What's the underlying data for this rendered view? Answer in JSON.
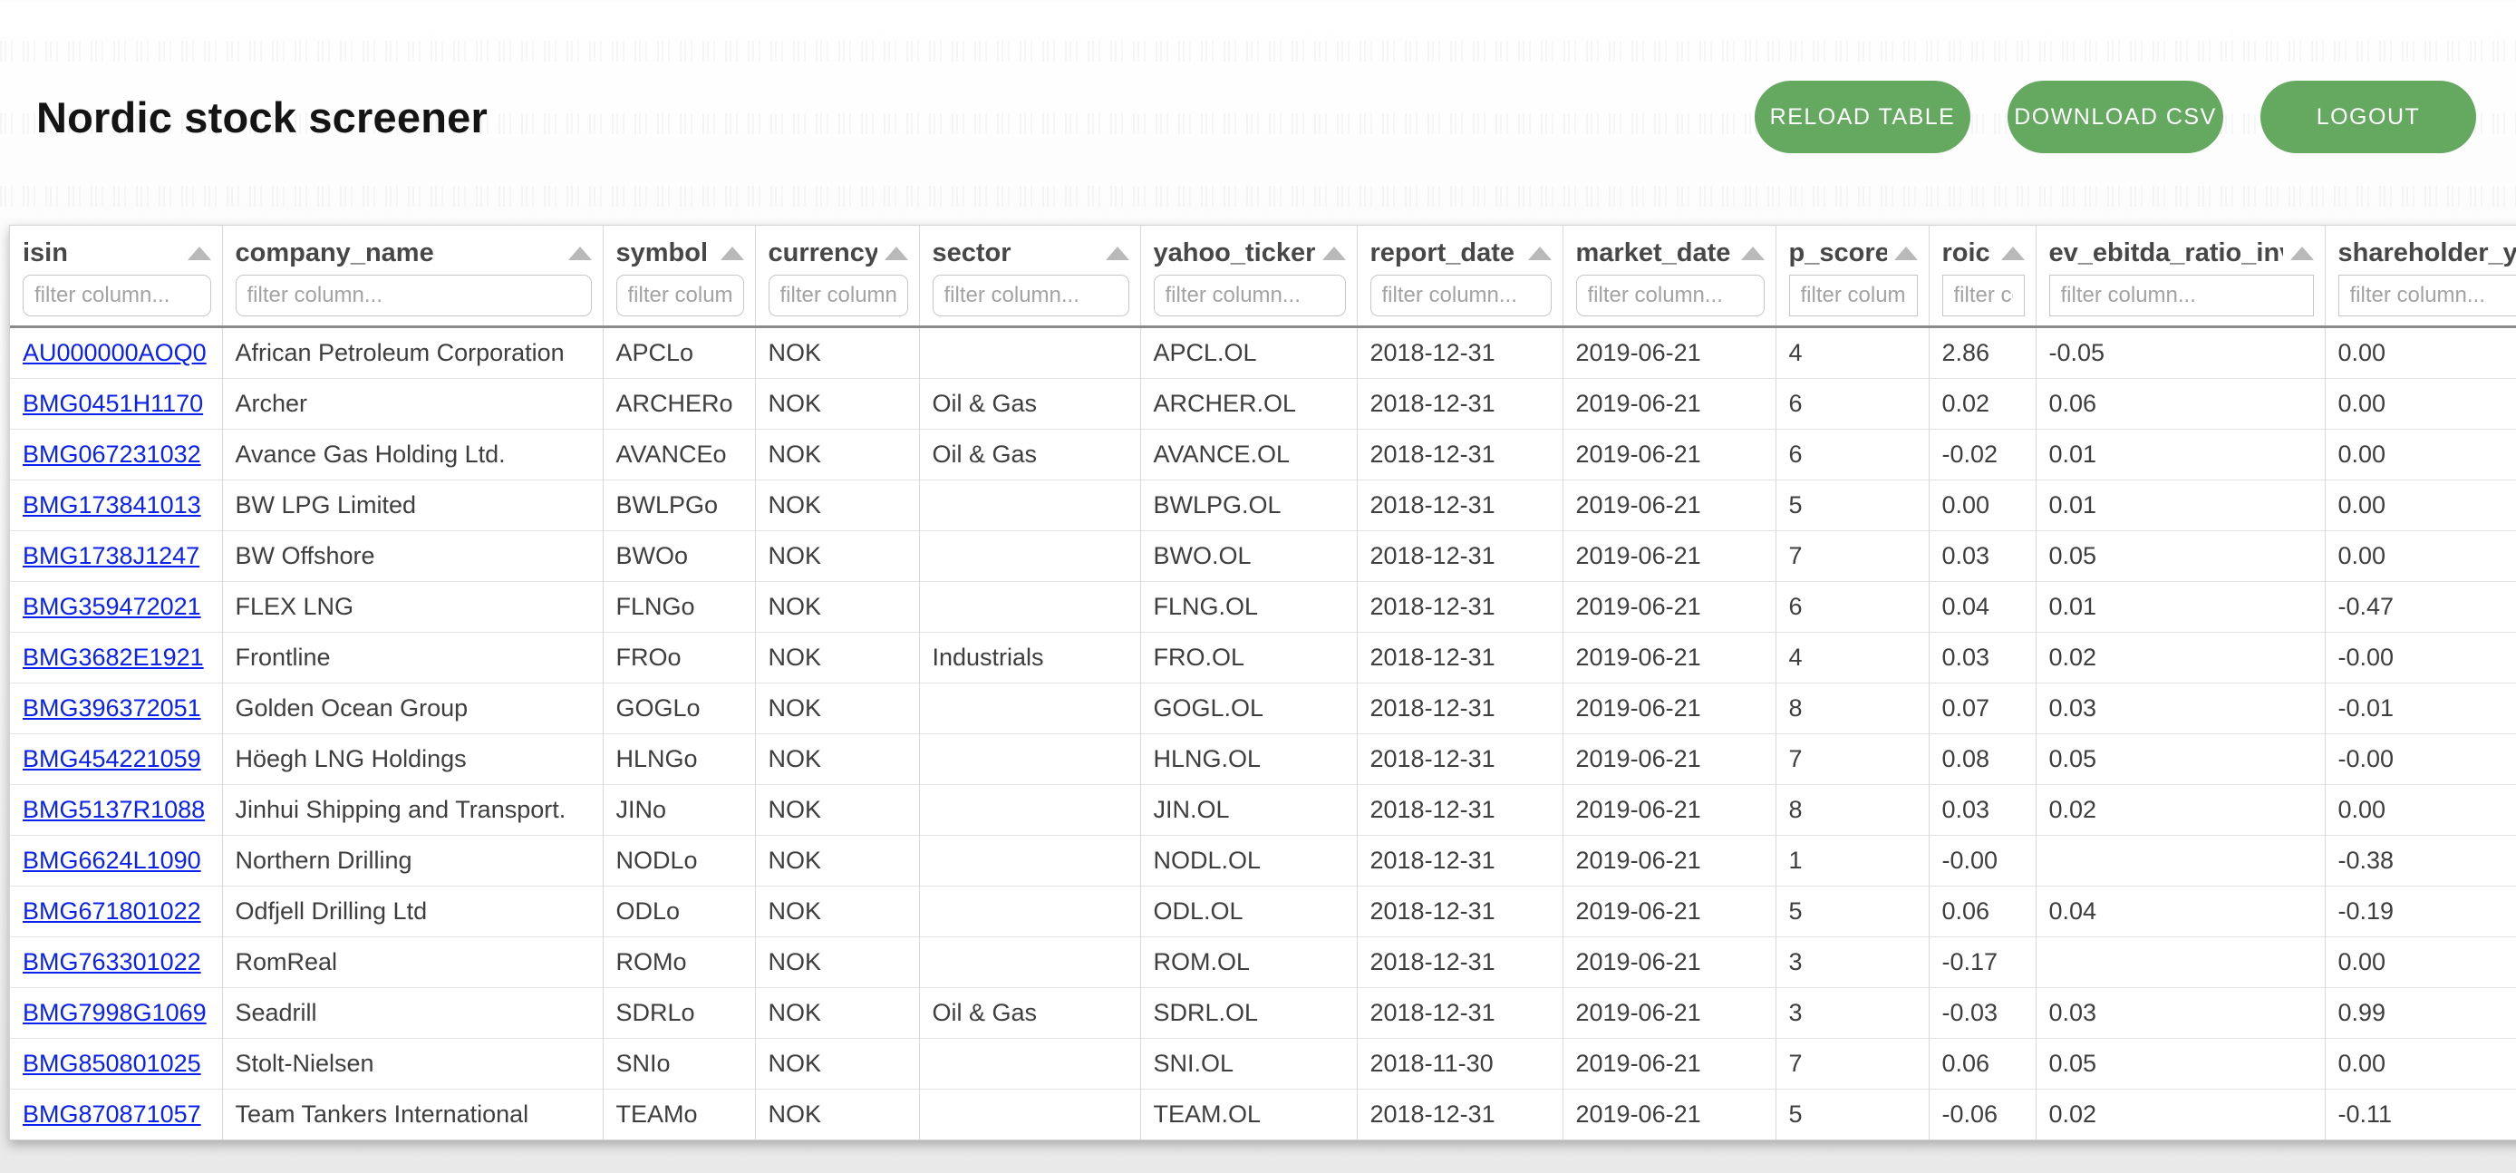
{
  "header": {
    "title": "Nordic stock screener",
    "buttons": [
      {
        "label": "RELOAD TABLE"
      },
      {
        "label": "DOWNLOAD CSV"
      },
      {
        "label": "LOGOUT"
      }
    ]
  },
  "colors": {
    "button_green": "#65a860",
    "link_blue": "#0b21ee",
    "header_underline_gray": "#8b8b8b",
    "sort_arrow_gray": "#b9b9b9"
  },
  "icons": {
    "sort": "up-triangle"
  },
  "table": {
    "filter_placeholder": "filter column...",
    "columns": [
      {
        "name": "isin",
        "numeric": false
      },
      {
        "name": "company_name",
        "numeric": false
      },
      {
        "name": "symbol",
        "numeric": false
      },
      {
        "name": "currency",
        "numeric": false
      },
      {
        "name": "sector",
        "numeric": false
      },
      {
        "name": "yahoo_ticker",
        "numeric": false
      },
      {
        "name": "report_date",
        "numeric": false
      },
      {
        "name": "market_date",
        "numeric": false
      },
      {
        "name": "p_score",
        "numeric": true
      },
      {
        "name": "roic",
        "numeric": true
      },
      {
        "name": "ev_ebitda_ratio_inv",
        "numeric": true
      },
      {
        "name": "shareholder_yield",
        "numeric": true
      }
    ],
    "rows": [
      [
        "AU000000AOQ0",
        "African Petroleum Corporation",
        "APCLo",
        "NOK",
        "",
        "APCL.OL",
        "2018-12-31",
        "2019-06-21",
        "4",
        "2.86",
        "-0.05",
        "0.00"
      ],
      [
        "BMG0451H1170",
        "Archer",
        "ARCHERo",
        "NOK",
        "Oil & Gas",
        "ARCHER.OL",
        "2018-12-31",
        "2019-06-21",
        "6",
        "0.02",
        "0.06",
        "0.00"
      ],
      [
        "BMG067231032",
        "Avance Gas Holding Ltd.",
        "AVANCEo",
        "NOK",
        "Oil & Gas",
        "AVANCE.OL",
        "2018-12-31",
        "2019-06-21",
        "6",
        "-0.02",
        "0.01",
        "0.00"
      ],
      [
        "BMG173841013",
        "BW LPG Limited",
        "BWLPGo",
        "NOK",
        "",
        "BWLPG.OL",
        "2018-12-31",
        "2019-06-21",
        "5",
        "0.00",
        "0.01",
        "0.00"
      ],
      [
        "BMG1738J1247",
        "BW Offshore",
        "BWOo",
        "NOK",
        "",
        "BWO.OL",
        "2018-12-31",
        "2019-06-21",
        "7",
        "0.03",
        "0.05",
        "0.00"
      ],
      [
        "BMG359472021",
        "FLEX LNG",
        "FLNGo",
        "NOK",
        "",
        "FLNG.OL",
        "2018-12-31",
        "2019-06-21",
        "6",
        "0.04",
        "0.01",
        "-0.47"
      ],
      [
        "BMG3682E1921",
        "Frontline",
        "FROo",
        "NOK",
        "Industrials",
        "FRO.OL",
        "2018-12-31",
        "2019-06-21",
        "4",
        "0.03",
        "0.02",
        "-0.00"
      ],
      [
        "BMG396372051",
        "Golden Ocean Group",
        "GOGLo",
        "NOK",
        "",
        "GOGL.OL",
        "2018-12-31",
        "2019-06-21",
        "8",
        "0.07",
        "0.03",
        "-0.01"
      ],
      [
        "BMG454221059",
        "Höegh LNG Holdings",
        "HLNGo",
        "NOK",
        "",
        "HLNG.OL",
        "2018-12-31",
        "2019-06-21",
        "7",
        "0.08",
        "0.05",
        "-0.00"
      ],
      [
        "BMG5137R1088",
        "Jinhui Shipping and Transport.",
        "JINo",
        "NOK",
        "",
        "JIN.OL",
        "2018-12-31",
        "2019-06-21",
        "8",
        "0.03",
        "0.02",
        "0.00"
      ],
      [
        "BMG6624L1090",
        "Northern Drilling",
        "NODLo",
        "NOK",
        "",
        "NODL.OL",
        "2018-12-31",
        "2019-06-21",
        "1",
        "-0.00",
        "",
        "-0.38"
      ],
      [
        "BMG671801022",
        "Odfjell Drilling Ltd",
        "ODLo",
        "NOK",
        "",
        "ODL.OL",
        "2018-12-31",
        "2019-06-21",
        "5",
        "0.06",
        "0.04",
        "-0.19"
      ],
      [
        "BMG763301022",
        "RomReal",
        "ROMo",
        "NOK",
        "",
        "ROM.OL",
        "2018-12-31",
        "2019-06-21",
        "3",
        "-0.17",
        "",
        "0.00"
      ],
      [
        "BMG7998G1069",
        "Seadrill",
        "SDRLo",
        "NOK",
        "Oil & Gas",
        "SDRL.OL",
        "2018-12-31",
        "2019-06-21",
        "3",
        "-0.03",
        "0.03",
        "0.99"
      ],
      [
        "BMG850801025",
        "Stolt-Nielsen",
        "SNIo",
        "NOK",
        "",
        "SNI.OL",
        "2018-11-30",
        "2019-06-21",
        "7",
        "0.06",
        "0.05",
        "0.00"
      ],
      [
        "BMG870871057",
        "Team Tankers International",
        "TEAMo",
        "NOK",
        "",
        "TEAM.OL",
        "2018-12-31",
        "2019-06-21",
        "5",
        "-0.06",
        "0.02",
        "-0.11"
      ]
    ]
  }
}
